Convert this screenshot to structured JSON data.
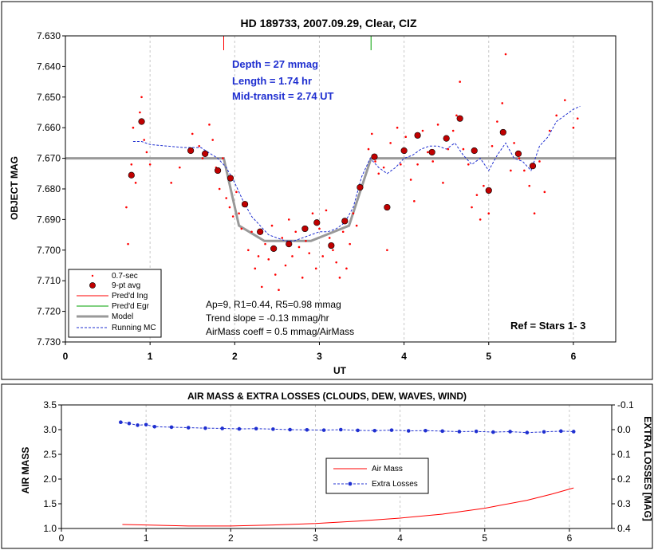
{
  "chart_data": [
    {
      "type": "scatter",
      "title": "HD 189733, 2007.09.29, Clear, CIZ",
      "xlabel": "UT",
      "ylabel": "OBJECT MAG",
      "xlim": [
        0,
        6.5
      ],
      "ylim": [
        7.63,
        7.73
      ],
      "y_inverted": true,
      "xticks": [
        "0",
        "1",
        "2",
        "3",
        "4",
        "5",
        "6"
      ],
      "yticks": [
        "7.630",
        "7.640",
        "7.650",
        "7.660",
        "7.670",
        "7.680",
        "7.690",
        "7.700",
        "7.710",
        "7.720",
        "7.730"
      ],
      "grid": "vertical",
      "legend_position": "bottom-left",
      "annotations": {
        "depth": "Depth = 27 mmag",
        "length": "Length = 1.74 hr",
        "mid_transit": "Mid-transit = 2.74 UT",
        "ap": "Ap=9, R1=0.44, R5=0.98 mmag",
        "trend": "Trend slope = -0.13 mmag/hr",
        "airmass_coeff": "AirMass coeff = 0.5 mmag/AirMass",
        "ref": "Ref = Stars 1- 3"
      },
      "predicted_ingress_x": 1.87,
      "predicted_egress_x": 3.61,
      "series": [
        {
          "name": "0.7-sec",
          "color": "#ff0000",
          "x": [
            0.72,
            0.74,
            0.78,
            0.8,
            0.83,
            0.88,
            0.9,
            0.93,
            0.96,
            1.0,
            1.25,
            1.35,
            1.5,
            1.58,
            1.62,
            1.66,
            1.7,
            1.74,
            1.78,
            1.82,
            1.86,
            1.9,
            1.94,
            1.98,
            2.02,
            2.05,
            2.08,
            2.12,
            2.16,
            2.2,
            2.24,
            2.28,
            2.32,
            2.36,
            2.4,
            2.44,
            2.48,
            2.52,
            2.56,
            2.6,
            2.64,
            2.68,
            2.72,
            2.76,
            2.8,
            2.84,
            2.88,
            2.92,
            2.96,
            3.0,
            3.04,
            3.08,
            3.12,
            3.16,
            3.2,
            3.24,
            3.28,
            3.32,
            3.36,
            3.4,
            3.44,
            3.5,
            3.58,
            3.62,
            3.66,
            3.7,
            3.76,
            3.8,
            3.84,
            3.92,
            3.96,
            4.02,
            4.08,
            4.12,
            4.16,
            4.22,
            4.28,
            4.34,
            4.4,
            4.46,
            4.52,
            4.58,
            4.62,
            4.66,
            4.7,
            4.76,
            4.8,
            4.86,
            4.9,
            4.94,
            5.0,
            5.04,
            5.1,
            5.16,
            5.2,
            5.26,
            5.3,
            5.36,
            5.42,
            5.48,
            5.54,
            5.6,
            5.66,
            5.72,
            5.8,
            5.9,
            6.0,
            6.05
          ],
          "y": [
            7.686,
            7.698,
            7.672,
            7.66,
            7.678,
            7.655,
            7.65,
            7.664,
            7.668,
            7.672,
            7.678,
            7.673,
            7.662,
            7.666,
            7.67,
            7.668,
            7.659,
            7.664,
            7.673,
            7.68,
            7.67,
            7.683,
            7.686,
            7.689,
            7.681,
            7.688,
            7.693,
            7.685,
            7.7,
            7.694,
            7.706,
            7.702,
            7.712,
            7.698,
            7.703,
            7.692,
            7.708,
            7.713,
            7.696,
            7.705,
            7.69,
            7.702,
            7.694,
            7.699,
            7.709,
            7.697,
            7.701,
            7.688,
            7.706,
            7.693,
            7.702,
            7.687,
            7.696,
            7.7,
            7.704,
            7.709,
            7.694,
            7.706,
            7.698,
            7.688,
            7.692,
            7.679,
            7.667,
            7.662,
            7.671,
            7.675,
            7.673,
            7.7,
            7.665,
            7.66,
            7.672,
            7.663,
            7.677,
            7.684,
            7.672,
            7.661,
            7.668,
            7.671,
            7.659,
            7.678,
            7.667,
            7.661,
            7.656,
            7.645,
            7.667,
            7.672,
            7.686,
            7.682,
            7.69,
            7.679,
            7.688,
            7.666,
            7.658,
            7.652,
            7.636,
            7.674,
            7.665,
            7.67,
            7.674,
            7.679,
            7.688,
            7.671,
            7.681,
            7.661,
            7.656,
            7.651,
            7.66,
            7.657
          ]
        },
        {
          "name": "9-pt avg",
          "color": "#c00000",
          "x": [
            0.78,
            0.9,
            1.48,
            1.65,
            1.8,
            1.95,
            2.12,
            2.3,
            2.46,
            2.64,
            2.83,
            2.97,
            3.14,
            3.3,
            3.48,
            3.65,
            3.8,
            4.0,
            4.16,
            4.33,
            4.5,
            4.66,
            4.83,
            5.0,
            5.17,
            5.35,
            5.52
          ],
          "y": [
            7.6755,
            7.658,
            7.6675,
            7.6685,
            7.674,
            7.6765,
            7.685,
            7.694,
            7.6995,
            7.698,
            7.693,
            7.691,
            7.6985,
            7.6905,
            7.6795,
            7.6695,
            7.686,
            7.6675,
            7.6625,
            7.668,
            7.6635,
            7.657,
            7.6675,
            7.6805,
            7.6615,
            7.6685,
            7.6725
          ]
        },
        {
          "name": "Pred'd Ing",
          "color": "#ff0000"
        },
        {
          "name": "Pred'd Egr",
          "color": "#00a000"
        },
        {
          "name": "Model",
          "color": "#999999",
          "x": [
            0,
            1.87,
            2.05,
            2.35,
            2.9,
            3.35,
            3.61,
            6.5
          ],
          "y": [
            7.67,
            7.67,
            7.692,
            7.697,
            7.697,
            7.692,
            7.67,
            7.67
          ]
        },
        {
          "name": "Running MC",
          "color": "#1f2fd0",
          "x": [
            0.8,
            0.9,
            1.0,
            1.2,
            1.4,
            1.6,
            1.8,
            1.9,
            2.0,
            2.1,
            2.2,
            2.3,
            2.4,
            2.5,
            2.6,
            2.7,
            2.8,
            2.9,
            3.0,
            3.1,
            3.2,
            3.3,
            3.4,
            3.5,
            3.6,
            3.7,
            3.8,
            3.9,
            4.0,
            4.1,
            4.2,
            4.3,
            4.4,
            4.5,
            4.6,
            4.7,
            4.8,
            4.9,
            5.0,
            5.1,
            5.2,
            5.3,
            5.4,
            5.5,
            5.6,
            5.7,
            5.8,
            5.9,
            6.0,
            6.08
          ],
          "y": [
            7.6645,
            7.6645,
            7.6655,
            7.666,
            7.6665,
            7.6665,
            7.67,
            7.673,
            7.678,
            7.684,
            7.689,
            7.692,
            7.695,
            7.696,
            7.697,
            7.697,
            7.696,
            7.695,
            7.694,
            7.694,
            7.693,
            7.691,
            7.686,
            7.676,
            7.67,
            7.673,
            7.675,
            7.673,
            7.67,
            7.669,
            7.667,
            7.666,
            7.666,
            7.667,
            7.665,
            7.669,
            7.672,
            7.67,
            7.674,
            7.669,
            7.665,
            7.67,
            7.671,
            7.674,
            7.666,
            7.663,
            7.658,
            7.656,
            7.654,
            7.653
          ]
        }
      ]
    },
    {
      "type": "line",
      "title": "AIR MASS & EXTRA LOSSES (CLOUDS, DEW, WAVES, WIND)",
      "xlabel": "",
      "ylabel": "AIR MASS",
      "y2label": "EXTRA LOSSES [MAG]",
      "xlim": [
        0,
        6.5
      ],
      "ylim": [
        1.0,
        3.5
      ],
      "y2lim": [
        -0.1,
        0.4
      ],
      "y2_inverted": true,
      "xticks": [
        "0",
        "1",
        "2",
        "3",
        "4",
        "5",
        "6"
      ],
      "yticks": [
        "1.0",
        "1.5",
        "2.0",
        "2.5",
        "3.0",
        "3.5"
      ],
      "y2ticks": [
        "-0.1",
        "0.0",
        "0.1",
        "0.2",
        "0.3",
        "0.4"
      ],
      "grid": "vertical",
      "legend_position": "center",
      "series": [
        {
          "name": "Air Mass",
          "color": "#ff0000",
          "axis": "left",
          "x": [
            0.72,
            1.0,
            1.5,
            2.0,
            2.5,
            3.0,
            3.5,
            4.0,
            4.5,
            5.0,
            5.5,
            5.8,
            6.05
          ],
          "y": [
            1.08,
            1.07,
            1.05,
            1.05,
            1.07,
            1.1,
            1.15,
            1.21,
            1.29,
            1.41,
            1.57,
            1.7,
            1.82
          ]
        },
        {
          "name": "Extra Losses",
          "color": "#1f2fd0",
          "axis": "right",
          "x": [
            0.7,
            0.8,
            0.9,
            1.0,
            1.1,
            1.3,
            1.5,
            1.7,
            1.9,
            2.1,
            2.3,
            2.5,
            2.7,
            2.9,
            3.1,
            3.3,
            3.5,
            3.7,
            3.9,
            4.1,
            4.3,
            4.5,
            4.7,
            4.9,
            5.1,
            5.3,
            5.5,
            5.7,
            5.9,
            6.05
          ],
          "y": [
            -0.03,
            -0.025,
            -0.018,
            -0.02,
            -0.012,
            -0.01,
            -0.008,
            -0.006,
            -0.005,
            -0.003,
            -0.004,
            -0.002,
            0.0,
            0.001,
            0.002,
            0.0,
            0.003,
            0.004,
            0.002,
            0.005,
            0.004,
            0.006,
            0.008,
            0.007,
            0.01,
            0.008,
            0.012,
            0.009,
            0.006,
            0.008
          ]
        }
      ]
    }
  ]
}
